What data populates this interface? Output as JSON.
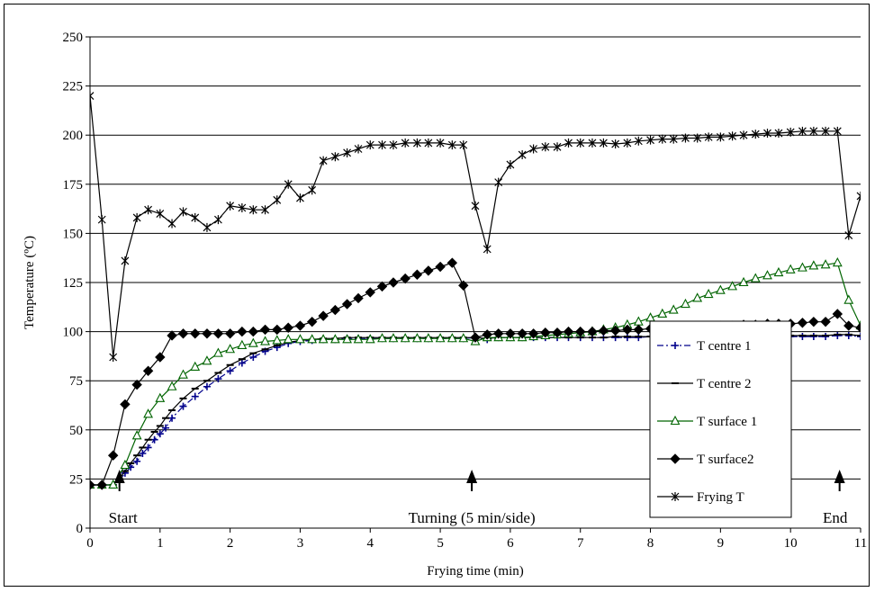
{
  "chart_data": {
    "type": "line",
    "title": "",
    "xlabel": "Frying  time (min)",
    "ylabel": "Temperature (ºC)",
    "xlim": [
      0,
      11
    ],
    "ylim": [
      0,
      250
    ],
    "xticks": [
      "0",
      "1",
      "2",
      "3",
      "4",
      "5",
      "6",
      "7",
      "8",
      "9",
      "10",
      "11"
    ],
    "yticks": [
      "0",
      "25",
      "50",
      "75",
      "100",
      "125",
      "150",
      "175",
      "200",
      "225",
      "250"
    ],
    "grid": "horizontal",
    "legend_position": "right",
    "annotations": [
      {
        "text": "Start",
        "x": 0.42
      },
      {
        "text": "Turning (5 min/side)",
        "x": 5.45
      },
      {
        "text": "End",
        "x": 10.7
      }
    ],
    "series": [
      {
        "name": "T centre 1",
        "color": "#00008b",
        "marker": "plus",
        "line": "dashdot",
        "x": [
          0,
          0.17,
          0.33,
          0.42,
          0.5,
          0.58,
          0.67,
          0.75,
          0.83,
          0.92,
          1.0,
          1.08,
          1.17,
          1.33,
          1.5,
          1.67,
          1.83,
          2.0,
          2.17,
          2.33,
          2.5,
          2.67,
          2.83,
          3.0,
          3.17,
          3.33,
          3.5,
          3.67,
          3.83,
          4.0,
          4.17,
          4.33,
          4.5,
          4.67,
          4.83,
          5.0,
          5.17,
          5.33,
          5.5,
          5.67,
          5.83,
          6.0,
          6.17,
          6.33,
          6.5,
          6.67,
          6.83,
          7.0,
          7.17,
          7.33,
          7.5,
          7.67,
          7.83,
          8.0,
          8.17,
          8.33,
          8.5,
          8.67,
          8.83,
          9.0,
          9.17,
          9.33,
          9.5,
          9.67,
          9.83,
          10.0,
          10.17,
          10.33,
          10.5,
          10.67,
          10.83,
          11.0
        ],
        "values": [
          22,
          22,
          22,
          24,
          28,
          31,
          34,
          38,
          41,
          45,
          48,
          51,
          56,
          62,
          67,
          72,
          76,
          80,
          84,
          87,
          90,
          92,
          94,
          95,
          95.5,
          96,
          96,
          96.5,
          96.5,
          96.5,
          96.5,
          96.5,
          96.5,
          96.5,
          96.5,
          96.5,
          96.5,
          96.5,
          97,
          96,
          97,
          97,
          97,
          97,
          97,
          97,
          97,
          97,
          97,
          97,
          97,
          97,
          97,
          97.5,
          97.5,
          97.5,
          97.5,
          97.5,
          97.5,
          97.5,
          97.5,
          97.5,
          97.5,
          97.5,
          97.5,
          97.5,
          97.5,
          97.5,
          97.5,
          98,
          98,
          97.5
        ]
      },
      {
        "name": "T centre 2",
        "color": "#000000",
        "marker": "dash",
        "line": "solid",
        "x": [
          0,
          0.17,
          0.33,
          0.42,
          0.5,
          0.58,
          0.67,
          0.75,
          0.83,
          0.92,
          1.0,
          1.08,
          1.17,
          1.33,
          1.5,
          1.67,
          1.83,
          2.0,
          2.17,
          2.33,
          2.5,
          2.67,
          2.83,
          3.0,
          3.17,
          3.33,
          3.5,
          3.67,
          3.83,
          4.0,
          4.17,
          4.33,
          4.5,
          4.67,
          4.83,
          5.0,
          5.17,
          5.33,
          5.5,
          5.67,
          5.83,
          6.0,
          6.17,
          6.33,
          6.5,
          6.67,
          6.83,
          7.0,
          7.17,
          7.33,
          7.5,
          7.67,
          7.83,
          8.0,
          8.17,
          8.33,
          8.5,
          8.67,
          8.83,
          9.0,
          9.17,
          9.33,
          9.5,
          9.67,
          9.83,
          10.0,
          10.17,
          10.33,
          10.5,
          10.67,
          10.83,
          11.0
        ],
        "values": [
          22,
          22,
          22,
          25,
          29,
          33,
          37,
          41,
          45,
          49,
          52,
          56,
          60,
          66,
          71,
          75,
          79,
          83,
          86,
          89,
          91,
          93,
          94.5,
          95.5,
          96,
          96.5,
          96.5,
          97,
          97,
          97,
          97,
          97,
          97,
          97,
          97,
          97,
          97,
          97,
          97,
          96.5,
          97,
          97,
          97,
          97,
          97,
          97,
          97,
          97,
          97,
          97,
          97.5,
          97.5,
          97.5,
          97.5,
          97.5,
          97.5,
          98,
          98,
          98,
          98,
          98,
          98,
          98,
          98,
          98,
          98,
          98,
          98,
          98,
          98.5,
          98.5,
          98
        ]
      },
      {
        "name": "T surface 1",
        "color": "#006400",
        "marker": "triangle",
        "line": "solid",
        "x": [
          0,
          0.17,
          0.33,
          0.5,
          0.67,
          0.83,
          1.0,
          1.17,
          1.33,
          1.5,
          1.67,
          1.83,
          2.0,
          2.17,
          2.33,
          2.5,
          2.67,
          2.83,
          3.0,
          3.17,
          3.33,
          3.5,
          3.67,
          3.83,
          4.0,
          4.17,
          4.33,
          4.5,
          4.67,
          4.83,
          5.0,
          5.17,
          5.33,
          5.5,
          5.67,
          5.83,
          6.0,
          6.17,
          6.33,
          6.5,
          6.67,
          6.83,
          7.0,
          7.17,
          7.33,
          7.5,
          7.67,
          7.83,
          8.0,
          8.17,
          8.33,
          8.5,
          8.67,
          8.83,
          9.0,
          9.17,
          9.33,
          9.5,
          9.67,
          9.83,
          10.0,
          10.17,
          10.33,
          10.5,
          10.67,
          10.83,
          11.0
        ],
        "values": [
          22,
          22,
          22,
          32,
          47,
          58,
          66,
          72,
          78,
          82,
          85,
          89,
          91,
          93,
          94,
          95,
          95.5,
          96,
          96,
          96,
          96,
          96,
          96,
          96,
          96,
          96.5,
          96.5,
          96.5,
          96.5,
          96.5,
          96.5,
          96.5,
          96.5,
          95,
          97,
          97,
          97,
          97,
          97.5,
          98,
          98.5,
          99,
          99.5,
          100,
          101,
          102,
          103.5,
          105,
          107,
          109,
          111,
          114,
          117,
          119,
          121,
          123,
          125,
          127,
          128.5,
          130,
          131.5,
          132.5,
          133.5,
          134,
          135,
          116,
          103
        ]
      },
      {
        "name": "T surface2",
        "color": "#000000",
        "marker": "diamond",
        "line": "solid",
        "x": [
          0,
          0.17,
          0.33,
          0.5,
          0.67,
          0.83,
          1.0,
          1.17,
          1.33,
          1.5,
          1.67,
          1.83,
          2.0,
          2.17,
          2.33,
          2.5,
          2.67,
          2.83,
          3.0,
          3.17,
          3.33,
          3.5,
          3.67,
          3.83,
          4.0,
          4.17,
          4.33,
          4.5,
          4.67,
          4.83,
          5.0,
          5.17,
          5.33,
          5.5,
          5.67,
          5.83,
          6.0,
          6.17,
          6.33,
          6.5,
          6.67,
          6.83,
          7.0,
          7.17,
          7.33,
          7.5,
          7.67,
          7.83,
          8.0,
          8.17,
          8.33,
          8.5,
          8.67,
          8.83,
          9.0,
          9.17,
          9.33,
          9.5,
          9.67,
          9.83,
          10.0,
          10.17,
          10.33,
          10.5,
          10.67,
          10.83,
          11.0
        ],
        "values": [
          22,
          22,
          37,
          63,
          73,
          80,
          87,
          98,
          99,
          99,
          99,
          99,
          99,
          100,
          100,
          101,
          101,
          102,
          103,
          105,
          108,
          111,
          114,
          117,
          120,
          123,
          125,
          127,
          129,
          131,
          133,
          135,
          123.5,
          97,
          98.5,
          99,
          99,
          99,
          99,
          99.5,
          99.5,
          100,
          100,
          100,
          100.5,
          100.5,
          101,
          101,
          101.5,
          101.5,
          102,
          102,
          102.5,
          102.5,
          103,
          103,
          103.5,
          103.5,
          104,
          104,
          104,
          104.5,
          105,
          105,
          109,
          103,
          102
        ]
      },
      {
        "name": "Frying T",
        "color": "#000000",
        "marker": "asterisk",
        "line": "solid",
        "x": [
          0,
          0.17,
          0.33,
          0.5,
          0.67,
          0.83,
          1.0,
          1.17,
          1.33,
          1.5,
          1.67,
          1.83,
          2.0,
          2.17,
          2.33,
          2.5,
          2.67,
          2.83,
          3.0,
          3.17,
          3.33,
          3.5,
          3.67,
          3.83,
          4.0,
          4.17,
          4.33,
          4.5,
          4.67,
          4.83,
          5.0,
          5.17,
          5.33,
          5.5,
          5.67,
          5.83,
          6.0,
          6.17,
          6.33,
          6.5,
          6.67,
          6.83,
          7.0,
          7.17,
          7.33,
          7.5,
          7.67,
          7.83,
          8.0,
          8.17,
          8.33,
          8.5,
          8.67,
          8.83,
          9.0,
          9.17,
          9.33,
          9.5,
          9.67,
          9.83,
          10.0,
          10.17,
          10.33,
          10.5,
          10.67,
          10.83,
          11.0
        ],
        "values": [
          220,
          157,
          87,
          136,
          158,
          162,
          160,
          155,
          161,
          158,
          153,
          157,
          164,
          163,
          162,
          162,
          167,
          175,
          168,
          172,
          187,
          189,
          191,
          193,
          195,
          195,
          195,
          196,
          196,
          196,
          196,
          195,
          195,
          164,
          142,
          176,
          185,
          190,
          193,
          194,
          194,
          196,
          196,
          196,
          196,
          195.5,
          196,
          197,
          197.5,
          198,
          198,
          198.5,
          198.5,
          199,
          199,
          199.5,
          200,
          200.5,
          201,
          201,
          201.5,
          202,
          202,
          202,
          202,
          149,
          169
        ]
      }
    ]
  }
}
